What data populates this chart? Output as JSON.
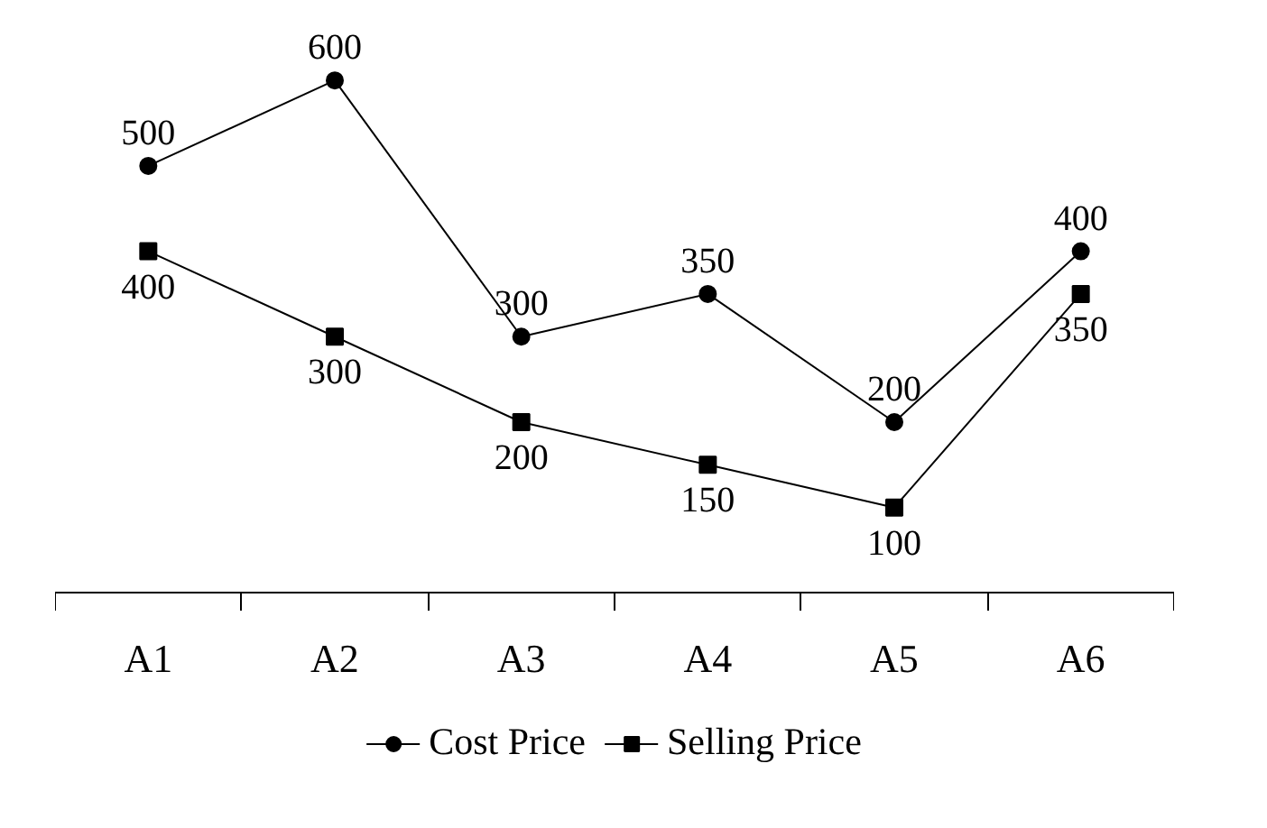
{
  "chart_data": {
    "type": "line",
    "categories": [
      "A1",
      "A2",
      "A3",
      "A4",
      "A5",
      "A6"
    ],
    "data_labels": true,
    "legend": "bottom",
    "grid": false,
    "series": [
      {
        "name": "Cost Price",
        "color": "#000000",
        "marker": "circle",
        "values": [
          500,
          600,
          300,
          350,
          200,
          400
        ]
      },
      {
        "name": "Selling Price",
        "color": "#000000",
        "marker": "square",
        "values": [
          400,
          300,
          200,
          150,
          100,
          350
        ]
      }
    ]
  }
}
